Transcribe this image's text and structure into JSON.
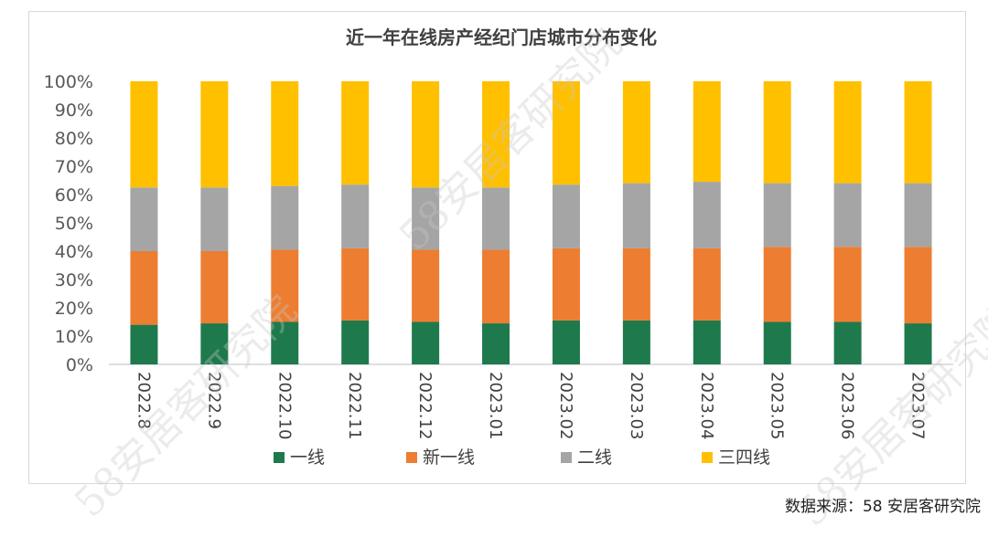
{
  "chart_data": {
    "type": "bar",
    "stacked": true,
    "title": "近一年在线房产经纪门店城市分布变化",
    "categories": [
      "2022.8",
      "2022.9",
      "2022.10",
      "2022.11",
      "2022.12",
      "2023.01",
      "2023.02",
      "2023.03",
      "2023.04",
      "2023.05",
      "2023.06",
      "2023.07"
    ],
    "ylim": [
      0,
      100
    ],
    "yticks": [
      "0%",
      "10%",
      "20%",
      "30%",
      "40%",
      "50%",
      "60%",
      "70%",
      "80%",
      "90%",
      "100%"
    ],
    "xlabel": "",
    "ylabel": "",
    "legend_position": "bottom",
    "series": [
      {
        "name": "一线",
        "color": "#1e7a4c",
        "values": [
          14,
          14.5,
          15,
          15.5,
          15,
          14.5,
          15.5,
          15.5,
          15.5,
          15,
          15,
          14.5
        ]
      },
      {
        "name": "新一线",
        "color": "#ed7d31",
        "values": [
          26,
          25.5,
          25.5,
          25.5,
          25.5,
          26,
          25.5,
          25.5,
          25.5,
          26.5,
          26.5,
          27
        ]
      },
      {
        "name": "二线",
        "color": "#a5a5a5",
        "values": [
          22.5,
          22.5,
          22.5,
          22.5,
          22,
          22,
          22.5,
          23,
          23.5,
          22.5,
          22.5,
          22.5
        ]
      },
      {
        "name": "三四线",
        "color": "#ffc000",
        "values": [
          37.5,
          37.5,
          37,
          36.5,
          37.5,
          37.5,
          36.5,
          36,
          35.5,
          36,
          36,
          36
        ]
      }
    ]
  },
  "source": "数据来源：58 安居客研究院",
  "watermark": "58安居客研究院"
}
